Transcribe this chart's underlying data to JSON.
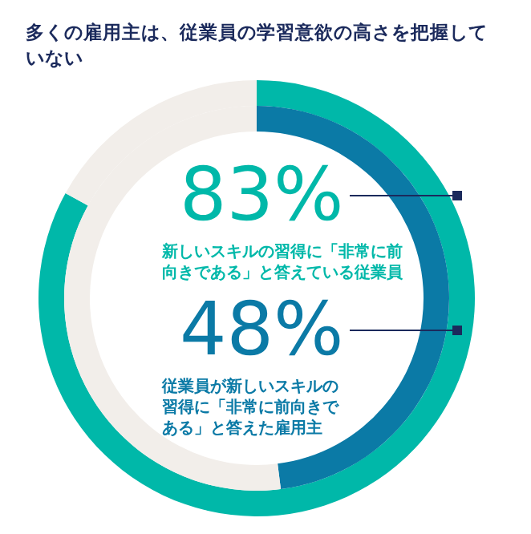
{
  "chart_data": {
    "type": "donut",
    "title": "多くの雇用主は、従業員の学習意欲の高さを把握していない",
    "categories": [
      null,
      null
    ],
    "legend": false,
    "series": [
      {
        "name": "新しいスキルの習得に「非常に前向きである」と答えている従業員",
        "values": [
          83,
          17
        ],
        "colors": [
          "#00b8a9",
          "#f2eeea"
        ],
        "value_labels": [
          "83%",
          null
        ]
      },
      {
        "name": "従業員が新しいスキルの習得に「非常に前向きである」と答えた雇用主",
        "values": [
          48,
          52
        ],
        "colors": [
          "#0b7aa6",
          "#f2eeea"
        ],
        "value_labels": [
          "48%",
          null
        ]
      }
    ]
  }
}
